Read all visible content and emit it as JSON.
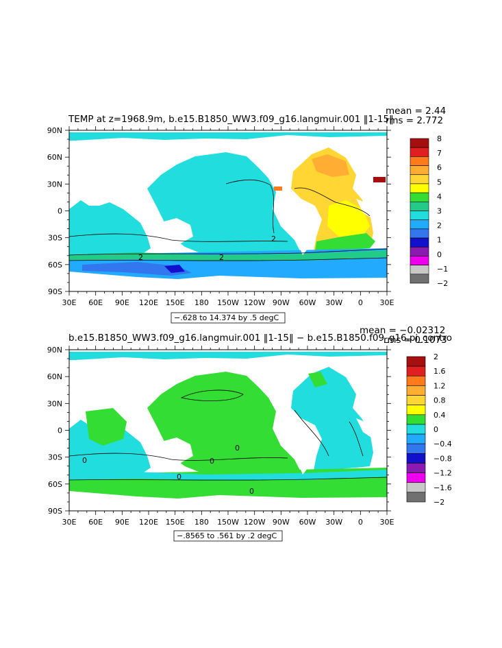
{
  "panels": [
    {
      "id": "top",
      "title": "TEMP at z=1968.9m, b.e15.B1850_WW3.f09_g16.langmuir.001 ‖1-15‖",
      "mean_text": "mean = 2.44",
      "rms_text": "rms = 2.772",
      "range_text": "−.628 to 14.374 by .5 degC",
      "colorbar_labels": [
        "8",
        "7",
        "6",
        "5",
        "4",
        "3",
        "2",
        "1",
        "0",
        "−1",
        "−2"
      ],
      "contour_labels": [
        "2",
        "2",
        "2"
      ]
    },
    {
      "id": "bottom",
      "title": "b.e15.B1850_WW3.f09_g16.langmuir.001 ‖1-15‖ − b.e15.B1850.f09_g16.pi_contro",
      "mean_text": "mean = −0.02312",
      "rms_text": "rms = 0.1073",
      "range_text": "−.8565 to .561 by .2 degC",
      "colorbar_labels": [
        "2",
        "1.6",
        "1.2",
        "0.8",
        "0.4",
        "0",
        "−0.4",
        "−0.8",
        "−1.2",
        "−1.6",
        "−2"
      ],
      "contour_labels": [
        "0",
        "0",
        "0",
        "0",
        "0"
      ]
    }
  ],
  "lon_labels": [
    "30E",
    "60E",
    "90E",
    "120E",
    "150E",
    "180",
    "150W",
    "120W",
    "90W",
    "60W",
    "30W",
    "0",
    "30E"
  ],
  "lat_labels": [
    "90N",
    "60N",
    "30N",
    "0",
    "30S",
    "60S",
    "90S"
  ],
  "colors": {
    "top_scale": [
      "#a50f0f",
      "#e02020",
      "#ff7a1a",
      "#ffad33",
      "#ffd633",
      "#ffff00",
      "#33dd33",
      "#22cc88",
      "#22dddd",
      "#22aaff",
      "#3377ee",
      "#1111cc",
      "#8a1ab0",
      "#ee00ee",
      "#c8c8c8",
      "#707070"
    ],
    "bottom_scale": [
      "#a50f0f",
      "#e02020",
      "#ff7a1a",
      "#ffad33",
      "#ffd633",
      "#ffff00",
      "#33dd33",
      "#22dddd",
      "#22aaff",
      "#3377ee",
      "#1111cc",
      "#8a1ab0",
      "#ee00ee",
      "#c8c8c8",
      "#707070"
    ]
  }
}
